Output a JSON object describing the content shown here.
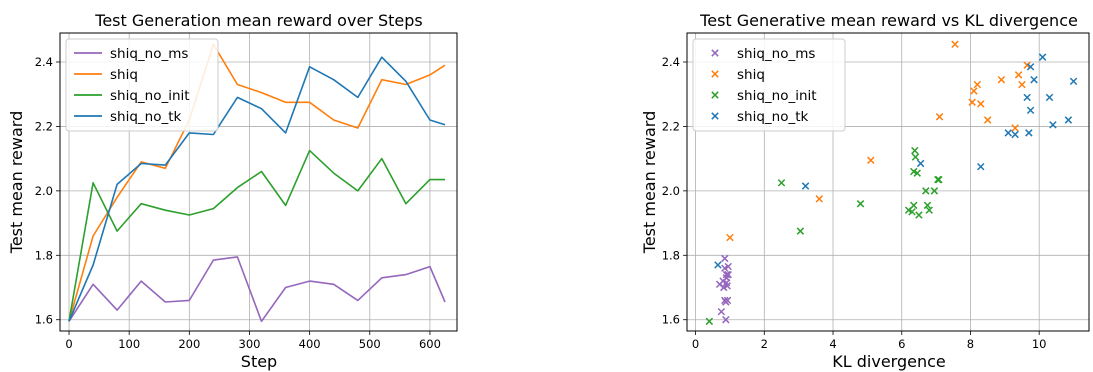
{
  "chart_data": [
    {
      "type": "line",
      "title": "Test Generation mean reward over Steps",
      "xlabel": "Step",
      "ylabel": "Test mean reward",
      "xlim": [
        -15,
        645
      ],
      "ylim": [
        1.565,
        2.49
      ],
      "xticks": [
        0,
        100,
        200,
        300,
        400,
        500,
        600
      ],
      "yticks": [
        1.6,
        1.8,
        2.0,
        2.2,
        2.4
      ],
      "ytick_labels": [
        "1.6",
        "1.8",
        "2.0",
        "2.2",
        "2.4"
      ],
      "grid": true,
      "legend": "top-left",
      "x": [
        0,
        40,
        80,
        120,
        160,
        200,
        240,
        280,
        320,
        360,
        400,
        440,
        480,
        520,
        560,
        600,
        625
      ],
      "series": [
        {
          "name": "shiq_no_ms",
          "color": "#9467bd",
          "values": [
            1.595,
            1.71,
            1.63,
            1.72,
            1.655,
            1.66,
            1.785,
            1.795,
            1.595,
            1.7,
            1.72,
            1.71,
            1.66,
            1.73,
            1.74,
            1.765,
            1.655
          ]
        },
        {
          "name": "shiq",
          "color": "#ff7f0e",
          "values": [
            1.595,
            1.86,
            1.98,
            2.09,
            2.07,
            2.22,
            2.455,
            2.33,
            2.305,
            2.275,
            2.275,
            2.22,
            2.195,
            2.345,
            2.33,
            2.36,
            2.39
          ]
        },
        {
          "name": "shiq_no_init",
          "color": "#2ca02c",
          "values": [
            1.595,
            2.025,
            1.875,
            1.96,
            1.94,
            1.925,
            1.945,
            2.01,
            2.06,
            1.955,
            2.125,
            2.055,
            2.0,
            2.1,
            1.96,
            2.035,
            2.035
          ]
        },
        {
          "name": "shiq_no_tk",
          "color": "#1f77b4",
          "values": [
            1.595,
            1.77,
            2.02,
            2.085,
            2.08,
            2.18,
            2.175,
            2.29,
            2.255,
            2.18,
            2.385,
            2.345,
            2.29,
            2.415,
            2.34,
            2.22,
            2.205
          ]
        }
      ]
    },
    {
      "type": "scatter",
      "title": "Test Generative mean reward vs KL divergence",
      "xlabel": "KL divergence",
      "ylabel": "Test mean reward",
      "xlim": [
        -0.25,
        11.45
      ],
      "ylim": [
        1.565,
        2.49
      ],
      "xticks": [
        0,
        2,
        4,
        6,
        8,
        10
      ],
      "yticks": [
        1.6,
        1.8,
        2.0,
        2.2,
        2.4
      ],
      "ytick_labels": [
        "1.6",
        "1.8",
        "2.0",
        "2.2",
        "2.4"
      ],
      "grid": true,
      "legend": "top-left",
      "marker": "x",
      "series": [
        {
          "name": "shiq_no_ms",
          "color": "#9467bd",
          "points": [
            [
              0.7,
              1.71
            ],
            [
              0.75,
              1.625
            ],
            [
              0.8,
              1.72
            ],
            [
              0.82,
              1.7
            ],
            [
              0.85,
              1.66
            ],
            [
              0.85,
              1.76
            ],
            [
              0.85,
              1.79
            ],
            [
              0.88,
              1.655
            ],
            [
              0.88,
              1.6
            ],
            [
              0.9,
              1.74
            ],
            [
              0.9,
              1.715
            ],
            [
              0.9,
              1.73
            ],
            [
              0.9,
              1.73
            ],
            [
              0.92,
              1.705
            ],
            [
              0.93,
              1.66
            ],
            [
              0.95,
              1.765
            ],
            [
              0.95,
              1.74
            ]
          ]
        },
        {
          "name": "shiq",
          "color": "#ff7f0e",
          "points": [
            [
              1.0,
              1.855
            ],
            [
              3.6,
              1.975
            ],
            [
              5.1,
              2.095
            ],
            [
              7.1,
              2.23
            ],
            [
              7.55,
              2.455
            ],
            [
              8.05,
              2.275
            ],
            [
              8.1,
              2.31
            ],
            [
              8.2,
              2.33
            ],
            [
              8.3,
              2.27
            ],
            [
              8.5,
              2.22
            ],
            [
              8.9,
              2.345
            ],
            [
              9.3,
              2.195
            ],
            [
              9.4,
              2.36
            ],
            [
              9.5,
              2.33
            ],
            [
              9.65,
              2.39
            ]
          ]
        },
        {
          "name": "shiq_no_init",
          "color": "#2ca02c",
          "points": [
            [
              0.4,
              1.595
            ],
            [
              2.5,
              2.025
            ],
            [
              3.05,
              1.875
            ],
            [
              4.8,
              1.96
            ],
            [
              6.2,
              1.94
            ],
            [
              6.3,
              1.935
            ],
            [
              6.35,
              1.955
            ],
            [
              6.35,
              2.06
            ],
            [
              6.38,
              2.125
            ],
            [
              6.4,
              2.105
            ],
            [
              6.45,
              2.055
            ],
            [
              6.5,
              1.925
            ],
            [
              6.7,
              2.0
            ],
            [
              6.75,
              1.955
            ],
            [
              6.8,
              1.94
            ],
            [
              6.95,
              2.0
            ],
            [
              7.05,
              2.035
            ],
            [
              7.08,
              2.035
            ]
          ]
        },
        {
          "name": "shiq_no_tk",
          "color": "#1f77b4",
          "points": [
            [
              0.65,
              1.77
            ],
            [
              3.2,
              2.015
            ],
            [
              6.55,
              2.085
            ],
            [
              8.3,
              2.075
            ],
            [
              9.1,
              2.18
            ],
            [
              9.3,
              2.175
            ],
            [
              9.65,
              2.29
            ],
            [
              9.7,
              2.18
            ],
            [
              9.75,
              2.25
            ],
            [
              9.75,
              2.385
            ],
            [
              9.85,
              2.345
            ],
            [
              10.1,
              2.415
            ],
            [
              10.3,
              2.29
            ],
            [
              10.4,
              2.205
            ],
            [
              10.85,
              2.22
            ],
            [
              11.0,
              2.34
            ]
          ]
        }
      ]
    }
  ]
}
